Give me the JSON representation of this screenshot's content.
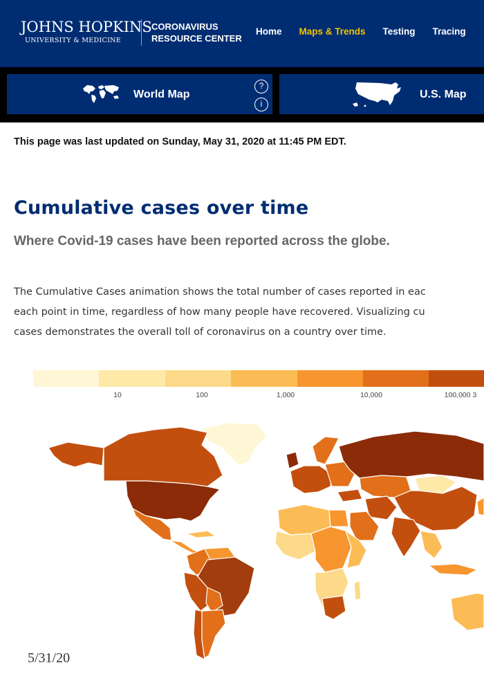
{
  "header": {
    "logo_line1": "JOHNS HOPKINS",
    "logo_line2": "UNIVERSITY & MEDICINE",
    "crc_line1": "CORONAVIRUS",
    "crc_line2": "RESOURCE CENTER",
    "nav": [
      "Home",
      "Maps & Trends",
      "Testing",
      "Tracing"
    ],
    "active_nav": "Maps & Trends",
    "brand_color": "#002d72",
    "accent_color": "#f1c400"
  },
  "tabs": {
    "world_label": "World Map",
    "world_icon": "world-map-icon",
    "us_label": "U.S. Map",
    "us_icon": "us-map-icon",
    "help_glyph": "?",
    "info_glyph": "i"
  },
  "main": {
    "updated": "This page was last updated on Sunday, May 31, 2020 at 11:45 PM EDT.",
    "title": "Cumulative cases over time",
    "subtitle": "Where Covid-19 cases have been reported across the globe.",
    "paragraph": [
      "The Cumulative Cases animation shows the total number of cases reported in eac",
      "each point in time, regardless of how many people have recovered. Visualizing cu",
      "cases demonstrates the overall toll of coronavirus on a country over time."
    ]
  },
  "legend": {
    "colors": [
      "#fff6d5",
      "#fee9a8",
      "#fdd98a",
      "#fcbc55",
      "#f7952f",
      "#e2701a",
      "#c34f0f"
    ],
    "labels": [
      "10",
      "100",
      "1,000",
      "10,000",
      "100,000  3"
    ]
  },
  "map": {
    "date": "5/31/20"
  }
}
